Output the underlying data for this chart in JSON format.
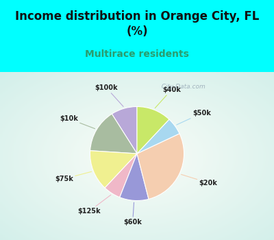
{
  "title": "Income distribution in Orange City, FL\n(%)",
  "subtitle": "Multirace residents",
  "title_color": "#111111",
  "subtitle_color": "#2a9d6e",
  "bg_cyan": "#00ffff",
  "chart_bg_color": "#e8f5ee",
  "labels": [
    "$100k",
    "$10k",
    "$75k",
    "$125k",
    "$60k",
    "$20k",
    "$50k",
    "$40k"
  ],
  "sizes": [
    9,
    15,
    14,
    6,
    10,
    28,
    6,
    12
  ],
  "colors": [
    "#b8a8d8",
    "#a8bca0",
    "#f0f090",
    "#f0b8c8",
    "#9898d8",
    "#f5ceb0",
    "#a8d8f0",
    "#c8e868"
  ],
  "line_colors": [
    "#b8a8d8",
    "#a8bca0",
    "#f0f090",
    "#f0b8c8",
    "#9898d8",
    "#f5ceb0",
    "#a8d8f0",
    "#c8e868"
  ],
  "startangle": 90,
  "watermark": "  City-Data.com"
}
